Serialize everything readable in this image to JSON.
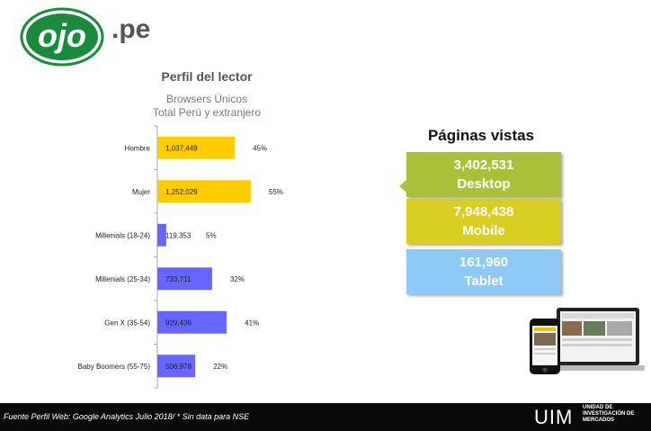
{
  "brand": {
    "logo_text": "ojo",
    "suffix": ".pe"
  },
  "chart_header": {
    "title": "Perfil del lector",
    "subtitle1": "Browsers Únicos",
    "subtitle2": "Total Perú y extranjero"
  },
  "chart_data": {
    "type": "bar",
    "orientation": "horizontal",
    "title": "Perfil del lector",
    "subtitle": "Browsers Únicos Total Perú y extranjero",
    "categories": [
      "Hombre",
      "Mujer",
      "Millenials (18-24)",
      "Millenials (25-34)",
      "Gen X (35-54)",
      "Baby Boomers (55-75)"
    ],
    "values": [
      1037449,
      1252029,
      119353,
      733711,
      929436,
      506978
    ],
    "value_labels": [
      "1,037,449",
      "1,252,029",
      "119,353",
      "733,711",
      "929,436",
      "506,978"
    ],
    "percent_labels": [
      "45%",
      "55%",
      "5%",
      "32%",
      "41%",
      "22%"
    ],
    "colors": [
      "#ffcc00",
      "#ffcc00",
      "#6666ff",
      "#6666ff",
      "#6666ff",
      "#6666ff"
    ],
    "xlim": [
      0,
      1500000
    ],
    "grid": false,
    "legend": "none"
  },
  "paginas_vistas": {
    "title": "Páginas vistas",
    "items": [
      {
        "value": "3,402,531",
        "label": "Desktop",
        "color": "#a9c03a"
      },
      {
        "value": "7,948,438",
        "label": "Mobile",
        "color": "#d9cd22"
      },
      {
        "value": "161,960",
        "label": "Tablet",
        "color": "#8ec9f5"
      }
    ]
  },
  "footer": {
    "note": "Fuente Perfil Web: Google Analytics Julio 2018/  * Sin data para NSE",
    "org_short": "UIM",
    "org_line1": "UNIDAD DE",
    "org_line2": "INVESTIGACIÓN DE",
    "org_line3": "MERCADOS"
  }
}
